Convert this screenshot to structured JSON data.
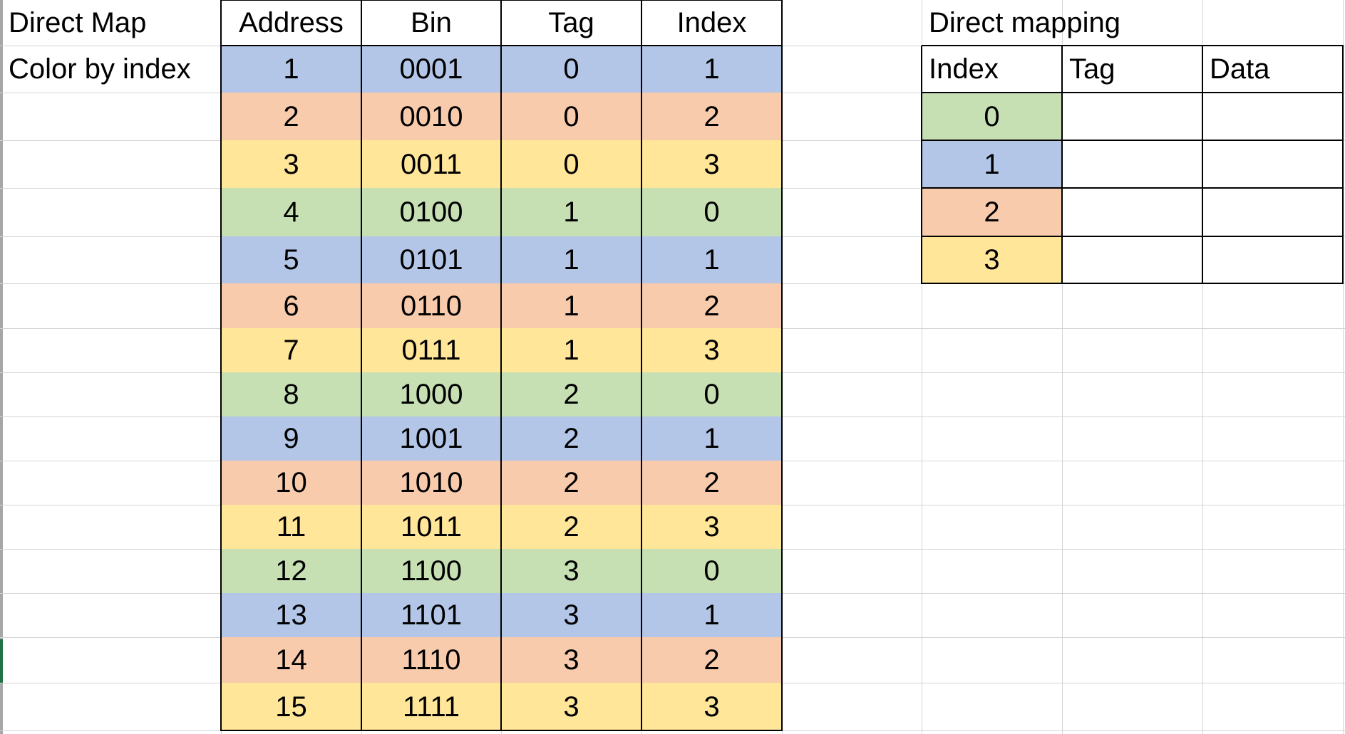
{
  "notes": {
    "title": "Direct Map",
    "subtitle": "Color by index"
  },
  "colors": {
    "idx0": "#c6e0b4",
    "idx1": "#b4c6e7",
    "idx2": "#f8cbad",
    "idx3": "#ffe699"
  },
  "address_table": {
    "headers": [
      "Address",
      "Bin",
      "Tag",
      "Index"
    ],
    "rows": [
      {
        "address": "1",
        "bin": "0001",
        "tag": "0",
        "index": "1"
      },
      {
        "address": "2",
        "bin": "0010",
        "tag": "0",
        "index": "2"
      },
      {
        "address": "3",
        "bin": "0011",
        "tag": "0",
        "index": "3"
      },
      {
        "address": "4",
        "bin": "0100",
        "tag": "1",
        "index": "0"
      },
      {
        "address": "5",
        "bin": "0101",
        "tag": "1",
        "index": "1"
      },
      {
        "address": "6",
        "bin": "0110",
        "tag": "1",
        "index": "2"
      },
      {
        "address": "7",
        "bin": "0111",
        "tag": "1",
        "index": "3"
      },
      {
        "address": "8",
        "bin": "1000",
        "tag": "2",
        "index": "0"
      },
      {
        "address": "9",
        "bin": "1001",
        "tag": "2",
        "index": "1"
      },
      {
        "address": "10",
        "bin": "1010",
        "tag": "2",
        "index": "2"
      },
      {
        "address": "11",
        "bin": "1011",
        "tag": "2",
        "index": "3"
      },
      {
        "address": "12",
        "bin": "1100",
        "tag": "3",
        "index": "0"
      },
      {
        "address": "13",
        "bin": "1101",
        "tag": "3",
        "index": "1"
      },
      {
        "address": "14",
        "bin": "1110",
        "tag": "3",
        "index": "2"
      },
      {
        "address": "15",
        "bin": "1111",
        "tag": "3",
        "index": "3"
      }
    ]
  },
  "mapping_table": {
    "title": "Direct mapping",
    "headers": [
      "Index",
      "Tag",
      "Data"
    ],
    "rows": [
      {
        "index": "0",
        "tag": "",
        "data": ""
      },
      {
        "index": "1",
        "tag": "",
        "data": ""
      },
      {
        "index": "2",
        "tag": "",
        "data": ""
      },
      {
        "index": "3",
        "tag": "",
        "data": ""
      }
    ]
  }
}
